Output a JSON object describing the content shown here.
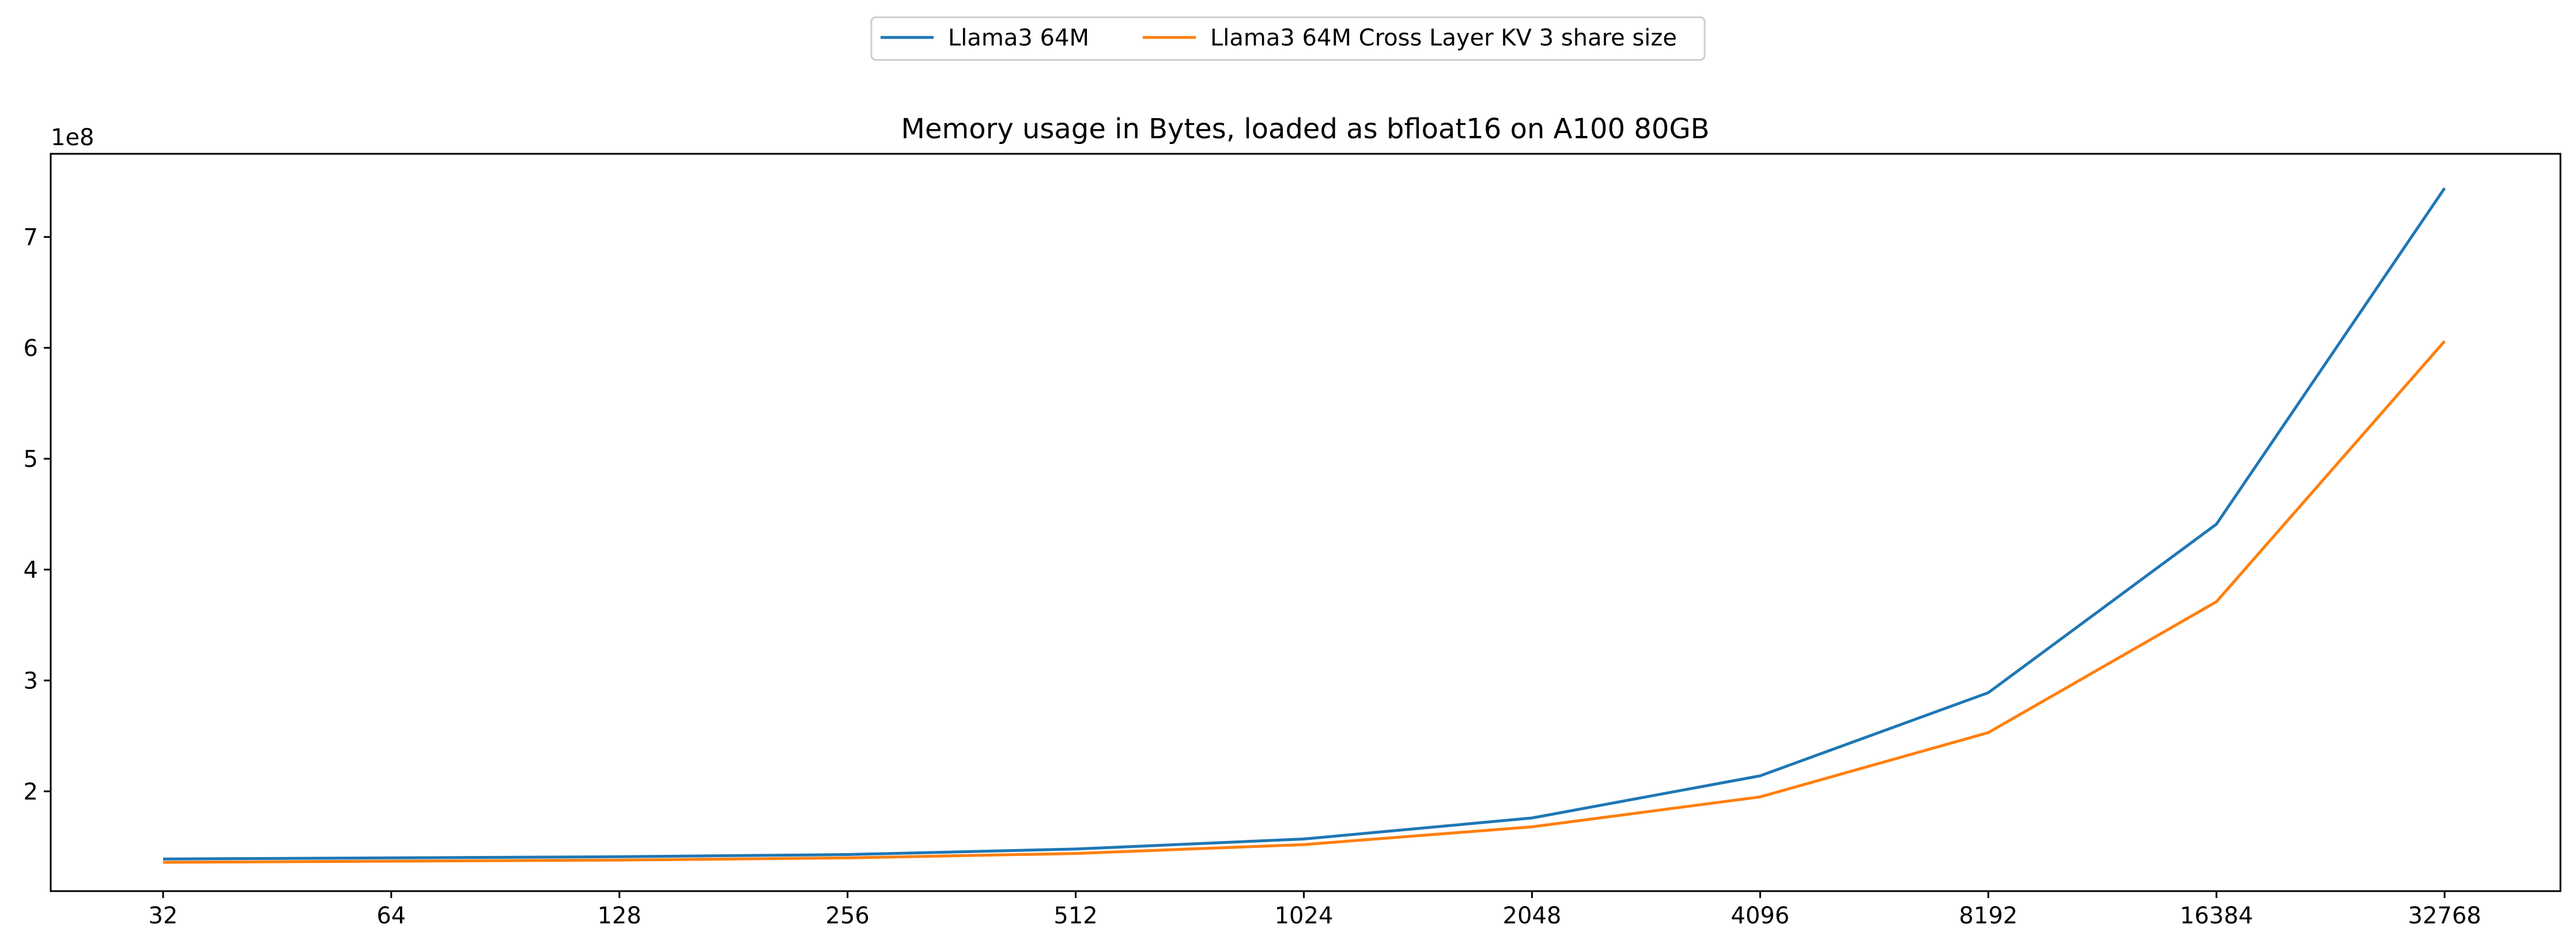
{
  "chart_data": {
    "type": "line",
    "title": "Memory usage in Bytes, loaded as bfloat16 on A100 80GB",
    "xlabel": "",
    "ylabel": "",
    "x": [
      "32",
      "64",
      "128",
      "256",
      "512",
      "1024",
      "2048",
      "4096",
      "8192",
      "16384",
      "32768"
    ],
    "y_offset_text": "1e8",
    "yticks": [
      2,
      3,
      4,
      5,
      6,
      7
    ],
    "ylim": [
      1.1,
      7.75
    ],
    "grid": false,
    "legend_position": "top-center",
    "series": [
      {
        "name": "Llama3 64M",
        "color": "#1f77b4",
        "values": [
          1.39,
          1.4,
          1.41,
          1.43,
          1.48,
          1.57,
          1.76,
          2.14,
          2.89,
          4.41,
          7.44
        ]
      },
      {
        "name": "Llama3 64M Cross Layer KV 3 share size",
        "color": "#ff7f0e",
        "values": [
          1.36,
          1.37,
          1.38,
          1.4,
          1.44,
          1.52,
          1.68,
          1.95,
          2.53,
          3.71,
          6.06
        ]
      }
    ]
  }
}
